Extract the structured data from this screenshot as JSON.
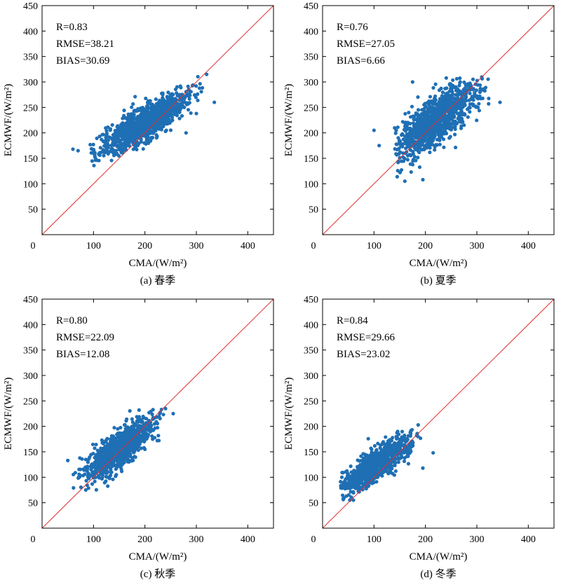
{
  "colors": {
    "points": "#1f6fb4",
    "identity_line": "#e03030",
    "axes": "#000000"
  },
  "chart_data": [
    {
      "type": "scatter",
      "id": "a",
      "caption": "(a) 春季",
      "xlabel": "CMA/(W/m²)",
      "ylabel": "ECMWF/(W/m²)",
      "xlim": [
        0,
        450
      ],
      "ylim": [
        0,
        450
      ],
      "xticks": [
        0,
        100,
        200,
        300,
        400
      ],
      "yticks": [
        0,
        50,
        100,
        150,
        200,
        250,
        300,
        350,
        400,
        450
      ],
      "stats": [
        "R=0.83",
        "RMSE=38.21",
        "BIAS=30.69"
      ],
      "reference_line": "y=x",
      "cluster": {
        "mx": 200,
        "my": 220,
        "sx": 42,
        "sy": 30,
        "r": 0.83,
        "xmin": 90,
        "xmax": 320,
        "ymin": 135,
        "ymax": 322,
        "n": 1100
      },
      "outliers": [
        [
          60,
          168
        ],
        [
          70,
          165
        ],
        [
          335,
          260
        ],
        [
          280,
          200
        ],
        [
          300,
          238
        ],
        [
          320,
          315
        ]
      ]
    },
    {
      "type": "scatter",
      "id": "b",
      "caption": "(b) 夏季",
      "xlabel": "CMA/(W/m²)",
      "ylabel": "ECMWF/(W/m²)",
      "xlim": [
        0,
        450
      ],
      "ylim": [
        0,
        450
      ],
      "xticks": [
        0,
        100,
        200,
        300,
        400
      ],
      "yticks": [
        0,
        50,
        100,
        150,
        200,
        250,
        300,
        350,
        400,
        450
      ],
      "stats": [
        "R=0.76",
        "RMSE=27.05",
        "BIAS=6.66"
      ],
      "reference_line": "y=x",
      "cluster": {
        "mx": 220,
        "my": 225,
        "sx": 40,
        "sy": 38,
        "r": 0.76,
        "xmin": 140,
        "xmax": 330,
        "ymin": 105,
        "ymax": 310,
        "n": 1000
      },
      "outliers": [
        [
          100,
          205
        ],
        [
          110,
          175
        ],
        [
          345,
          260
        ],
        [
          175,
          300
        ],
        [
          160,
          105
        ],
        [
          195,
          108
        ]
      ]
    },
    {
      "type": "scatter",
      "id": "c",
      "caption": "(c) 秋季",
      "xlabel": "CMA/(W/m²)",
      "ylabel": "ECMWF/(W/m²)",
      "xlim": [
        0,
        450
      ],
      "ylim": [
        0,
        450
      ],
      "xticks": [
        0,
        100,
        200,
        300,
        400
      ],
      "yticks": [
        0,
        50,
        100,
        150,
        200,
        250,
        300,
        350,
        400,
        450
      ],
      "stats": [
        "R=0.80",
        "RMSE=22.09",
        "BIAS=12.08"
      ],
      "reference_line": "y=x",
      "cluster": {
        "mx": 150,
        "my": 155,
        "sx": 32,
        "sy": 28,
        "r": 0.8,
        "xmin": 60,
        "xmax": 240,
        "ymin": 75,
        "ymax": 235,
        "n": 1000
      },
      "outliers": [
        [
          50,
          133
        ],
        [
          255,
          225
        ],
        [
          240,
          235
        ],
        [
          200,
          155
        ],
        [
          85,
          75
        ]
      ]
    },
    {
      "type": "scatter",
      "id": "d",
      "caption": "(d) 冬季",
      "xlabel": "CMA/(W/m²)",
      "ylabel": "ECMWF/(W/m²)",
      "xlim": [
        0,
        450
      ],
      "ylim": [
        0,
        450
      ],
      "xticks": [
        0,
        100,
        200,
        300,
        400
      ],
      "yticks": [
        0,
        50,
        100,
        150,
        200,
        250,
        300,
        350,
        400,
        450
      ],
      "stats": [
        "R=0.84",
        "RMSE=29.66",
        "BIAS=23.02"
      ],
      "reference_line": "y=x",
      "cluster": {
        "mx": 105,
        "my": 125,
        "sx": 35,
        "sy": 28,
        "r": 0.84,
        "xmin": 35,
        "xmax": 200,
        "ymin": 52,
        "ymax": 212,
        "n": 900
      },
      "outliers": [
        [
          215,
          148
        ],
        [
          195,
          118
        ],
        [
          40,
          88
        ],
        [
          60,
          55
        ]
      ]
    }
  ]
}
